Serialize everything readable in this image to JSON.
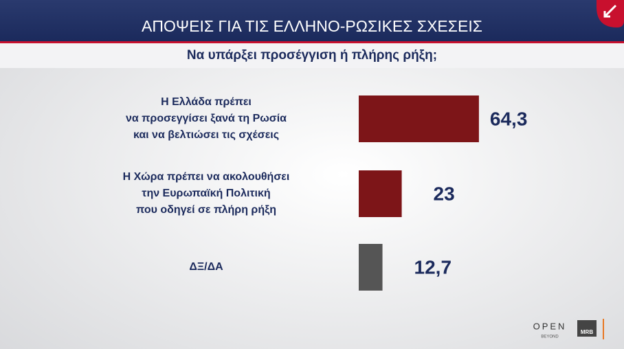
{
  "chart_data": {
    "type": "bar",
    "orientation": "horizontal",
    "title": "ΑΠΟΨΕΙΣ ΓΙΑ ΤΙΣ ΕΛΛΗΝΟ-ΡΩΣΙΚΕΣ ΣΧΕΣΕΙΣ",
    "subtitle": "Να υπάρξει προσέγγιση ή πλήρης ρήξη;",
    "categories": [
      "Η Ελλάδα πρέπει\nνα προσεγγίσει ξανά τη Ρωσία\nκαι να βελτιώσει τις σχέσεις",
      "Η Χώρα πρέπει να ακολουθήσει\nτην Ευρωπαϊκή Πολιτική\nπου οδηγεί σε πλήρη ρήξη",
      "ΔΞ/ΔΑ"
    ],
    "values": [
      64.3,
      23,
      12.7
    ],
    "value_labels": [
      "64,3",
      "23",
      "12,7"
    ],
    "colors": [
      "#7d1518",
      "#7d1518",
      "#555555"
    ]
  },
  "branding": {
    "channel": "OPEN",
    "tagline": "BEYOND",
    "pollster": "MRB"
  }
}
